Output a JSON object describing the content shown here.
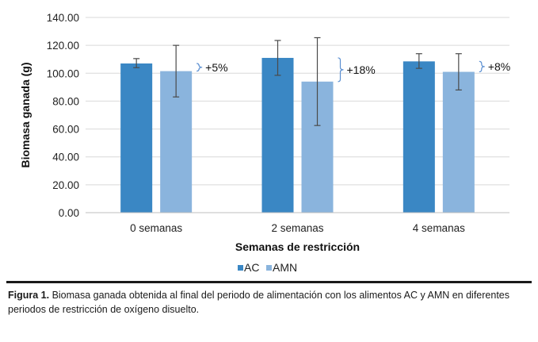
{
  "chart_data": {
    "type": "bar",
    "title": "",
    "xlabel": "Semanas de restricción",
    "ylabel": "Biomasa ganada (g)",
    "ylim": [
      0,
      140
    ],
    "yticks": [
      "0.00",
      "20.00",
      "40.00",
      "60.00",
      "80.00",
      "100.00",
      "120.00",
      "140.00"
    ],
    "ytick_values": [
      0,
      20,
      40,
      60,
      80,
      100,
      120,
      140
    ],
    "grid": true,
    "categories": [
      "0 semanas",
      "2 semanas",
      "4 semanas"
    ],
    "series": [
      {
        "name": "AC",
        "color": "#3a87c4",
        "values": [
          107,
          111,
          108.5
        ],
        "err_low": [
          104,
          98.5,
          103.5
        ],
        "err_high": [
          110.5,
          123.5,
          114
        ]
      },
      {
        "name": "AMN",
        "color": "#8ab4dd",
        "values": [
          101.5,
          94,
          101
        ],
        "err_low": [
          83,
          62.5,
          88
        ],
        "err_high": [
          120,
          125.5,
          114
        ]
      }
    ],
    "annotations": [
      "+5%",
      "+18%",
      "+8%"
    ],
    "bracket_color": "#5b8fd1",
    "legend_position": "bottom"
  },
  "caption": {
    "label": "Figura 1.",
    "text": " Biomasa ganada obtenida al final del periodo de alimentación con los alimentos AC y AMN en diferentes periodos de restricción de oxígeno disuelto."
  }
}
